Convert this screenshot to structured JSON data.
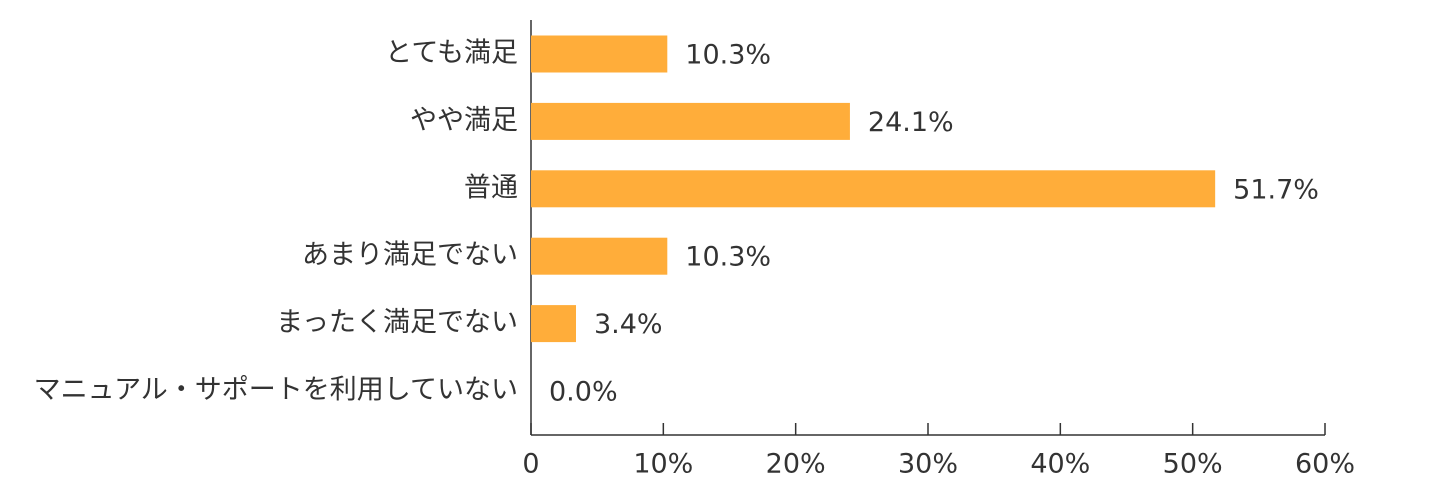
{
  "chart_data": {
    "type": "bar",
    "orientation": "horizontal",
    "categories": [
      "とても満足",
      "やや満足",
      "普通",
      "あまり満足でない",
      "まったく満足でない",
      "マニュアル・サポートを利用していない"
    ],
    "values": [
      10.3,
      24.1,
      51.7,
      10.3,
      3.4,
      0.0
    ],
    "value_labels": [
      "10.3%",
      "24.1%",
      "51.7%",
      "10.3%",
      "3.4%",
      "0.0%"
    ],
    "color": "#ffad3a",
    "xlim": [
      0,
      60
    ],
    "xticks": [
      0,
      {
        "value": 10,
        "label": "10%"
      },
      {
        "value": 20,
        "label": "20%"
      },
      {
        "value": 30,
        "label": "30%"
      },
      {
        "value": 40,
        "label": "40%"
      },
      {
        "value": 50,
        "label": "50%"
      },
      {
        "value": 60,
        "label": "60%"
      }
    ],
    "grid": false
  }
}
